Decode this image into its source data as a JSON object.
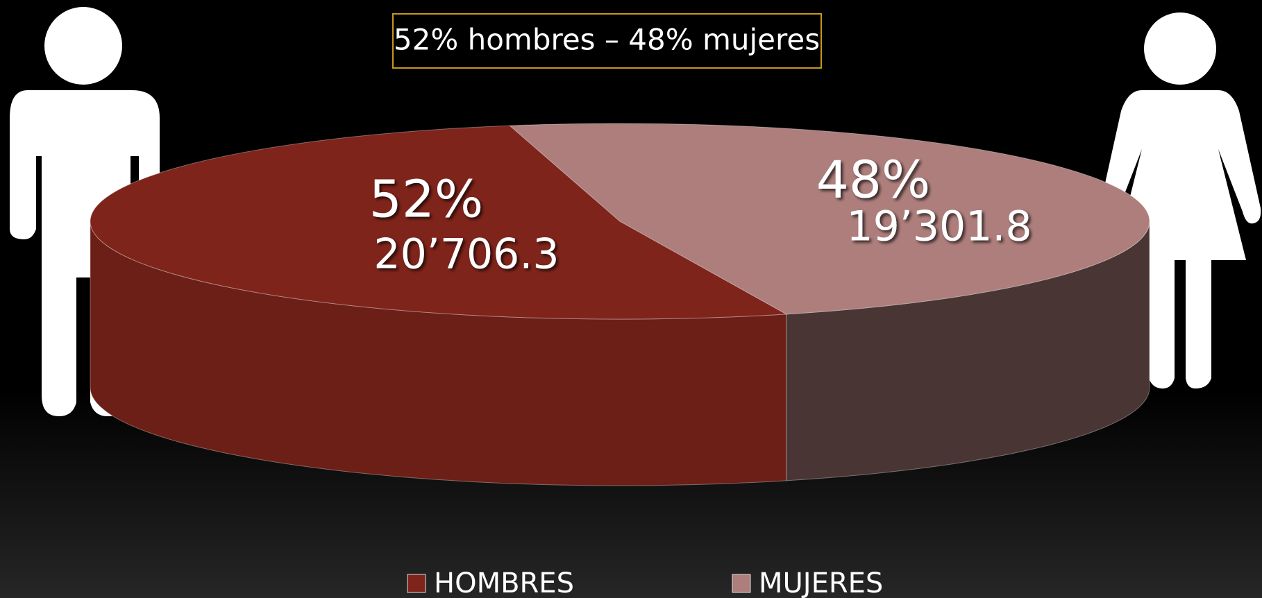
{
  "chart_data": {
    "type": "pie3d",
    "title": "52% hombres – 48% mujeres",
    "categories": [
      "HOMBRES",
      "MUJERES"
    ],
    "values": [
      52,
      48
    ],
    "value_labels": [
      "52%",
      "48%"
    ],
    "amounts": [
      20706.3,
      19301.8
    ],
    "amount_labels": [
      "20’706.3",
      "19’301.8"
    ],
    "colors": [
      "#7f241b",
      "#ad7e7c"
    ],
    "legend": "bottom"
  }
}
